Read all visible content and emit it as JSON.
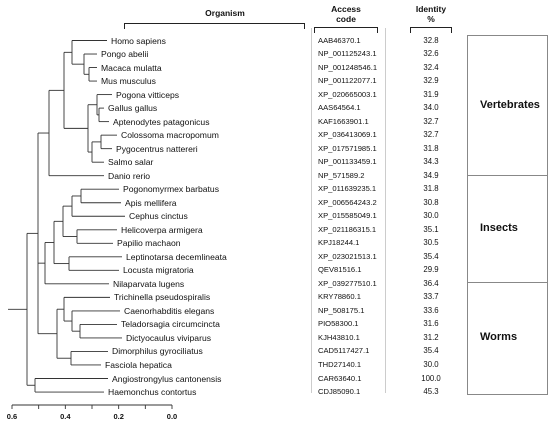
{
  "headers": {
    "organism": "Organism",
    "access_code": "Access\ncode",
    "identity": "Identity\n%"
  },
  "rows": [
    {
      "organism": "Homo sapiens",
      "code": "AAB46370.1",
      "identity": "32.8"
    },
    {
      "organism": "Pongo abelii",
      "code": "NP_001125243.1",
      "identity": "32.6"
    },
    {
      "organism": "Macaca mulatta",
      "code": "NP_001248546.1",
      "identity": "32.4"
    },
    {
      "organism": "Mus musculus",
      "code": "NP_001122077.1",
      "identity": "32.9"
    },
    {
      "organism": "Pogona vitticeps",
      "code": "XP_020665003.1",
      "identity": "31.9"
    },
    {
      "organism": "Gallus gallus",
      "code": "AAS64564.1",
      "identity": "34.0"
    },
    {
      "organism": "Aptenodytes patagonicus",
      "code": "KAF1663901.1",
      "identity": "32.7"
    },
    {
      "organism": "Colossoma macropomum",
      "code": "XP_036413069.1",
      "identity": "32.7"
    },
    {
      "organism": "Pygocentrus nattereri",
      "code": "XP_017571985.1",
      "identity": "31.8"
    },
    {
      "organism": "Salmo salar",
      "code": "NP_001133459.1",
      "identity": "34.3"
    },
    {
      "organism": "Danio rerio",
      "code": "NP_571589.2",
      "identity": "34.9"
    },
    {
      "organism": "Pogonomyrmex barbatus",
      "code": "XP_011639235.1",
      "identity": "31.8"
    },
    {
      "organism": "Apis mellifera",
      "code": "XP_006564243.2",
      "identity": "30.8"
    },
    {
      "organism": "Cephus cinctus",
      "code": "XP_015585049.1",
      "identity": "30.0"
    },
    {
      "organism": "Helicoverpa armigera",
      "code": "XP_021186315.1",
      "identity": "35.1"
    },
    {
      "organism": "Papilio machaon",
      "code": "KPJ18244.1",
      "identity": "30.5"
    },
    {
      "organism": "Leptinotarsa decemlineata",
      "code": "XP_023021513.1",
      "identity": "35.4"
    },
    {
      "organism": "Locusta migratoria",
      "code": "QEV81516.1",
      "identity": "29.9"
    },
    {
      "organism": "Nilaparvata lugens",
      "code": "XP_039277510.1",
      "identity": "36.4"
    },
    {
      "organism": "Trichinella pseudospiralis",
      "code": "KRY78860.1",
      "identity": "33.7"
    },
    {
      "organism": "Caenorhabditis elegans",
      "code": "NP_508175.1",
      "identity": "33.6"
    },
    {
      "organism": "Teladorsagia circumcincta",
      "code": "PIO58300.1",
      "identity": "31.6"
    },
    {
      "organism": "Dictyocaulus viviparus",
      "code": "KJH43810.1",
      "identity": "31.2"
    },
    {
      "organism": "Dimorphilus gyrociliatus",
      "code": "CAD5117427.1",
      "identity": "35.4"
    },
    {
      "organism": "Fasciola hepatica",
      "code": "THD27140.1",
      "identity": "30.0"
    },
    {
      "organism": "Angiostrongylus cantonensis",
      "code": "CAR63640.1",
      "identity": "100.0"
    },
    {
      "organism": "Haemonchus contortus",
      "code": "CDJ85090.1",
      "identity": "45.3"
    }
  ],
  "groups": [
    {
      "label": "Vertebrates"
    },
    {
      "label": "Insects"
    },
    {
      "label": "Worms"
    }
  ],
  "scale": {
    "labels": [
      "0.6",
      "0.4",
      "0.2",
      "0.0"
    ],
    "values": [
      0.6,
      0.4,
      0.2,
      0.0
    ]
  }
}
